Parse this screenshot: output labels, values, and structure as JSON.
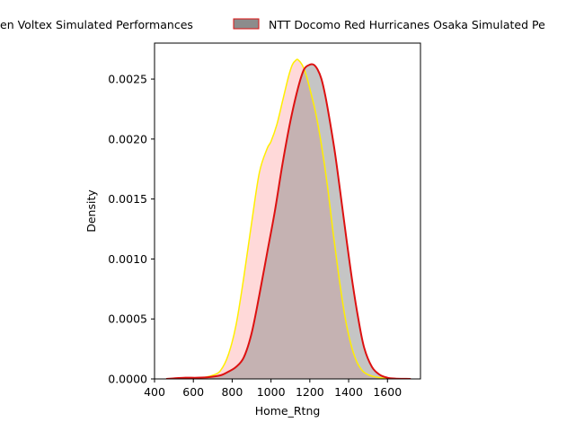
{
  "chart_data": {
    "type": "area",
    "title": "",
    "xlabel": "Home_Rtng",
    "ylabel": "Density",
    "xlim": [
      400,
      1770
    ],
    "ylim": [
      0,
      0.0028
    ],
    "xticks": [
      400,
      600,
      800,
      1000,
      1200,
      1400,
      1600
    ],
    "yticks": [
      0.0,
      0.0005,
      0.001,
      0.0015,
      0.002,
      0.0025
    ],
    "ytick_labels": [
      "0.0000",
      "0.0005",
      "0.0010",
      "0.0015",
      "0.0020",
      "0.0025"
    ],
    "grid": false,
    "legend_placement": "top, outside",
    "series": [
      {
        "name": "Toyota Verblitz Voltex Simulated Performances",
        "legend_text": "en Voltex Simulated Performances",
        "fill_color": "#ffb3b3",
        "line_color": "#ffee00",
        "x": [
          610,
          650,
          700,
          740,
          780,
          820,
          860,
          900,
          940,
          980,
          1000,
          1030,
          1060,
          1090,
          1110,
          1130,
          1140,
          1160,
          1180,
          1200,
          1230,
          1260,
          1290,
          1320,
          1350,
          1380,
          1410,
          1440,
          1470,
          1500,
          1530,
          1560,
          1600,
          1640
        ],
        "y": [
          0.0,
          1e-05,
          3e-05,
          7e-05,
          0.0002,
          0.00045,
          0.00085,
          0.0013,
          0.00172,
          0.00192,
          0.00198,
          0.00212,
          0.00232,
          0.00252,
          0.00262,
          0.00266,
          0.00266,
          0.00262,
          0.00254,
          0.00242,
          0.00222,
          0.00195,
          0.00162,
          0.00122,
          0.00085,
          0.00053,
          0.0003,
          0.00015,
          7e-05,
          3.5e-05,
          2e-05,
          1e-05,
          3e-06,
          0.0
        ]
      },
      {
        "name": "NTT Docomo Red Hurricanes Osaka Simulated Performances",
        "legend_text": "NTT Docomo Red Hurricanes Osaka Simulated Pe",
        "fill_color": "#8c8c8c",
        "line_color": "#dd1111",
        "x": [
          460,
          500,
          560,
          620,
          680,
          740,
          780,
          820,
          860,
          900,
          940,
          980,
          1020,
          1060,
          1100,
          1140,
          1170,
          1200,
          1220,
          1240,
          1260,
          1280,
          1300,
          1330,
          1360,
          1390,
          1420,
          1450,
          1480,
          1520,
          1560,
          1600,
          1640,
          1680,
          1720
        ],
        "y": [
          0.0,
          5e-06,
          1e-05,
          1e-05,
          1.5e-05,
          3e-05,
          6e-05,
          0.0001,
          0.00018,
          0.00038,
          0.0007,
          0.00105,
          0.0014,
          0.0018,
          0.00215,
          0.00243,
          0.00258,
          0.00262,
          0.00262,
          0.00258,
          0.0025,
          0.00236,
          0.00218,
          0.00188,
          0.00152,
          0.00115,
          0.0008,
          0.0005,
          0.00026,
          0.0001,
          3.5e-05,
          1e-05,
          3e-06,
          1e-06,
          0.0
        ]
      }
    ]
  }
}
